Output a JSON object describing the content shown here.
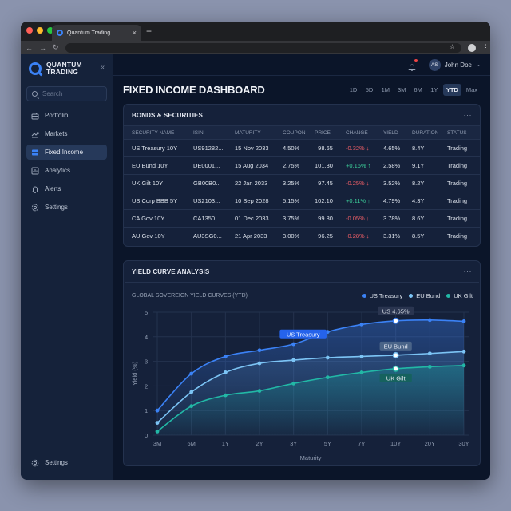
{
  "browser": {
    "tab_title": "Quantum Trading",
    "new_tab": "+",
    "close_tab": "×"
  },
  "sidebar": {
    "brand_line1": "QUANTUM",
    "brand_line2": "TRADING",
    "collapse_icon": "«",
    "search_placeholder": "Search",
    "items": [
      {
        "label": "Portfolio",
        "icon": "briefcase-icon"
      },
      {
        "label": "Markets",
        "icon": "trend-icon"
      },
      {
        "label": "Fixed Income",
        "icon": "card-icon",
        "active": true
      },
      {
        "label": "Analytics",
        "icon": "bar-chart-icon"
      },
      {
        "label": "Alerts",
        "icon": "bell-icon"
      },
      {
        "label": "Settings",
        "icon": "gear-icon"
      }
    ],
    "bottom_item": {
      "label": "Settings",
      "icon": "gear-icon"
    }
  },
  "topbar": {
    "avatar_initials": "AS",
    "user_name": "John Doe",
    "notification_dot_color": "#ef4444"
  },
  "header": {
    "title": "FIXED INCOME DASHBOARD",
    "ranges": [
      "1D",
      "5D",
      "1M",
      "3M",
      "6M",
      "1Y",
      "YTD",
      "Max"
    ],
    "active_range": "YTD"
  },
  "bonds": {
    "title": "BONDS & SECURITIES",
    "more": "···",
    "columns": [
      "SECURITY NAME",
      "ISIN",
      "MATURITY",
      "COUPON",
      "PRICE",
      "CHANGE",
      "YIELD",
      "DURATION",
      "STATUS"
    ],
    "rows": [
      {
        "name": "US Treasury 10Y",
        "isin": "US91282...",
        "maturity": "15 Nov 2033",
        "coupon": "4.50%",
        "price": "98.65",
        "change": "-0.32% ↓",
        "dir": "neg",
        "yield": "4.65%",
        "duration": "8.4Y",
        "status": "Trading"
      },
      {
        "name": "EU Bund 10Y",
        "isin": "DE0001...",
        "maturity": "15 Aug 2034",
        "coupon": "2.75%",
        "price": "101.30",
        "change": "+0.16% ↑",
        "dir": "pos",
        "yield": "2.58%",
        "duration": "9.1Y",
        "status": "Trading"
      },
      {
        "name": "UK Gilt 10Y",
        "isin": "GB00B0...",
        "maturity": "22 Jan 2033",
        "coupon": "3.25%",
        "price": "97.45",
        "change": "-0.25% ↓",
        "dir": "neg",
        "yield": "3.52%",
        "duration": "8.2Y",
        "status": "Trading"
      },
      {
        "name": "US Corp BBB 5Y",
        "isin": "US2103...",
        "maturity": "10 Sep 2028",
        "coupon": "5.15%",
        "price": "102.10",
        "change": "+0.11% ↑",
        "dir": "pos",
        "yield": "4.79%",
        "duration": "4.3Y",
        "status": "Trading"
      },
      {
        "name": "CA Gov 10Y",
        "isin": "CA1350...",
        "maturity": "01 Dec 2033",
        "coupon": "3.75%",
        "price": "99.80",
        "change": "-0.05% ↓",
        "dir": "neg",
        "yield": "3.78%",
        "duration": "8.6Y",
        "status": "Trading"
      },
      {
        "name": "AU Gov 10Y",
        "isin": "AU3SG0...",
        "maturity": "21 Apr 2033",
        "coupon": "3.00%",
        "price": "96.25",
        "change": "-0.28% ↓",
        "dir": "neg",
        "yield": "3.31%",
        "duration": "8.5Y",
        "status": "Trading"
      }
    ],
    "colors": {
      "negative": "#ef5f67",
      "positive": "#3ccf9a"
    }
  },
  "yield_curve": {
    "title": "YIELD CURVE ANALYSIS",
    "more": "···",
    "subtitle": "GLOBAL SOVEREIGN YIELD CURVES (YTD)",
    "legend": [
      {
        "name": "US Treasury",
        "color": "#3b82f6"
      },
      {
        "name": "EU Bund",
        "color": "#7cc4f5"
      },
      {
        "name": "UK Gilt",
        "color": "#22b8a6"
      }
    ],
    "annotations": {
      "us_series_label": "US Treasury",
      "us_10y": "US 4.65%",
      "eu_10y": "EU Bund",
      "uk_10y": "UK Gilt"
    }
  },
  "chart_data": {
    "type": "line",
    "title": "GLOBAL SOVEREIGN YIELD CURVES (YTD)",
    "xlabel": "Maturity",
    "ylabel": "Yield (%)",
    "categories": [
      "3M",
      "6M",
      "1Y",
      "2Y",
      "3Y",
      "5Y",
      "7Y",
      "10Y",
      "20Y",
      "30Y"
    ],
    "ylim": [
      0,
      5
    ],
    "yticks": [
      0,
      1,
      2,
      3,
      4,
      5
    ],
    "grid": true,
    "legend_position": "top-right",
    "series": [
      {
        "name": "US Treasury",
        "color": "#3b82f6",
        "values": [
          1.0,
          2.5,
          3.2,
          3.45,
          3.7,
          4.2,
          4.5,
          4.65,
          4.68,
          4.63
        ]
      },
      {
        "name": "EU Bund",
        "color": "#7cc4f5",
        "values": [
          0.5,
          1.75,
          2.55,
          2.92,
          3.05,
          3.15,
          3.2,
          3.25,
          3.32,
          3.4
        ]
      },
      {
        "name": "UK Gilt",
        "color": "#22b8a6",
        "values": [
          0.15,
          1.18,
          1.62,
          1.8,
          2.1,
          2.35,
          2.55,
          2.7,
          2.78,
          2.83
        ]
      }
    ],
    "annotations": [
      {
        "series": "US Treasury",
        "x": "10Y",
        "text": "US 4.65%"
      },
      {
        "series": "EU Bund",
        "x": "10Y",
        "text": "EU Bund"
      },
      {
        "series": "UK Gilt",
        "x": "10Y",
        "text": "UK Gilt"
      },
      {
        "series": "US Treasury",
        "x": "3Y",
        "text": "US Treasury"
      }
    ]
  }
}
